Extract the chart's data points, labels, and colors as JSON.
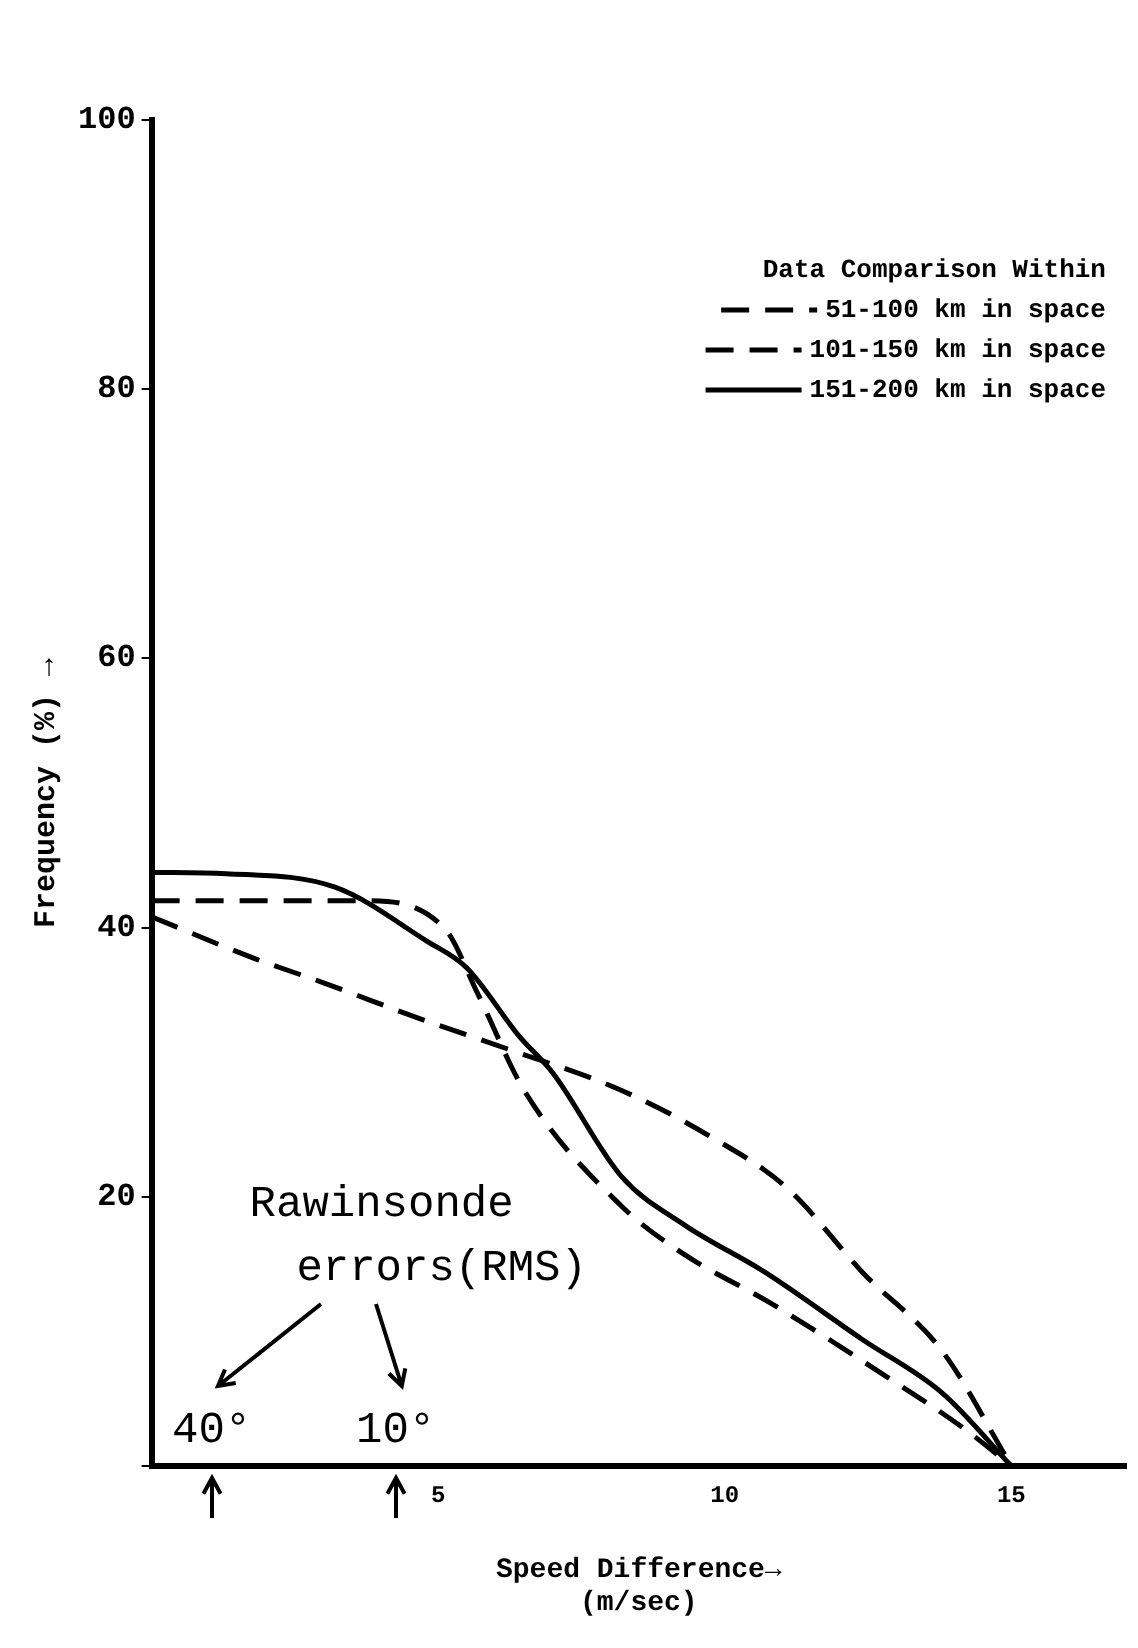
{
  "chart_data": {
    "type": "line",
    "xlabel": "Speed Difference→\n(m/sec)",
    "ylabel": "Frequency (%) →",
    "legend_title": "Data Comparison Within",
    "xlim": [
      0,
      17
    ],
    "xticks": [
      {
        "value": 0,
        "label": null
      },
      5,
      10,
      15
    ],
    "ylim": [
      0,
      100
    ],
    "yticks": [
      {
        "value": 0,
        "label": null
      },
      20,
      40,
      60,
      80,
      100
    ],
    "grid": false,
    "legend": "top right",
    "marker": "none",
    "series": [
      {
        "name": "51-100 km in space",
        "color": "#000000",
        "line_style": "dashed",
        "x": [
          0,
          1.5,
          3.7,
          5.1,
          5.7,
          6.5,
          8.2,
          9.3,
          10.8,
          12.8,
          14.2,
          15
        ],
        "values": [
          42,
          42,
          42,
          40,
          35,
          27.9,
          19.3,
          15.7,
          12.1,
          6.7,
          2.7,
          0
        ]
      },
      {
        "name": "101-150 km in space",
        "color": "#000000",
        "line_style": "dashed",
        "x": [
          0,
          1.8,
          3.0,
          4.7,
          6.2,
          8.2,
          9.7,
          11.1,
          12.4,
          13.8,
          15
        ],
        "values": [
          40.8,
          37.7,
          35.9,
          33.2,
          31,
          27.9,
          24.6,
          20.6,
          14.4,
          8.5,
          0
        ]
      },
      {
        "name": "151-200 km in space",
        "color": "#000000",
        "line_style": "solid",
        "x": [
          0,
          1.3,
          3.2,
          4.8,
          5.5,
          6.4,
          7.0,
          8.2,
          9.3,
          10.7,
          12.4,
          13.8,
          15
        ],
        "values": [
          44.1,
          44,
          43,
          39,
          37,
          32,
          29.2,
          21.5,
          17.9,
          14.4,
          9.4,
          5.4,
          0
        ]
      }
    ],
    "annotations": [
      "Rawinsonde\nerrors(RMS)",
      "40°",
      "10°"
    ]
  }
}
